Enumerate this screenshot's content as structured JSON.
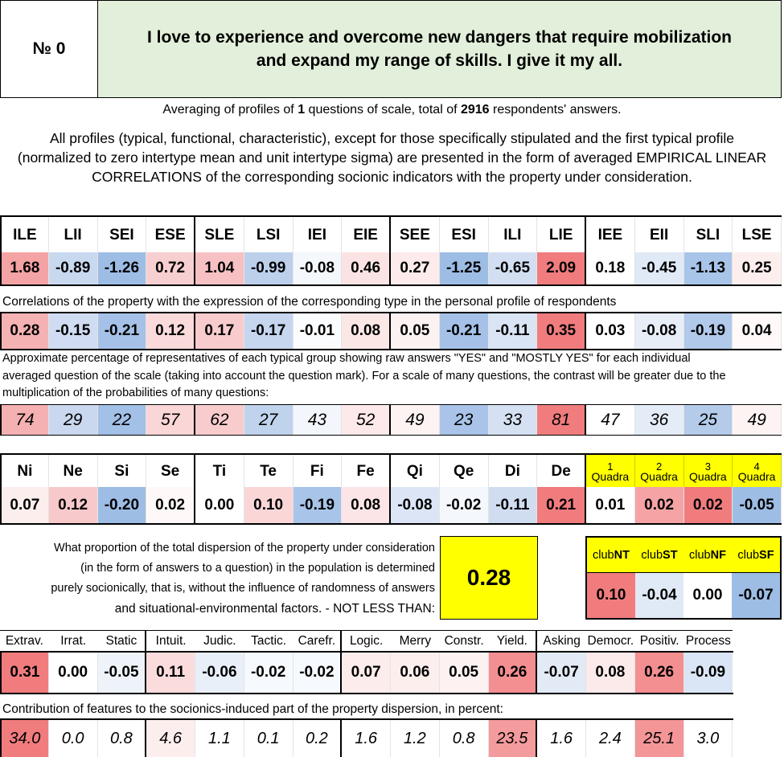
{
  "header": {
    "number_label": "№ 0",
    "title": "I love to experience and overcome new dangers that require mobilization and expand my range of skills. I give it my all."
  },
  "averaging": {
    "prefix": "Averaging of profiles of ",
    "questions": "1",
    "middle": " questions of scale, total of ",
    "respondents": "2916",
    "suffix": " respondents' answers."
  },
  "description": "All profiles (typical, functional, characteristic), except for those specifically stipulated and the first typical profile (normalized to zero intertype mean and unit intertype sigma) are presented in the form of averaged EMPIRICAL LINEAR CORRELATIONS of the corresponding socionic indicators with the property under consideration.",
  "types": {
    "names": [
      "ILE",
      "LII",
      "SEI",
      "ESE",
      "SLE",
      "LSI",
      "IEI",
      "EIE",
      "SEE",
      "ESI",
      "ILI",
      "LIE",
      "IEE",
      "EII",
      "SLI",
      "LSE"
    ],
    "normalized": [
      "1.68",
      "-0.89",
      "-1.26",
      "0.72",
      "1.04",
      "-0.99",
      "-0.08",
      "0.46",
      "0.27",
      "-1.25",
      "-0.65",
      "2.09",
      "0.18",
      "-0.45",
      "-1.13",
      "0.25"
    ],
    "normalized_colors": [
      "#f4a3a5",
      "#c8d8ef",
      "#9dbde5",
      "#f8cfd0",
      "#f7c1c3",
      "#bcd0ec",
      "#f4f7fc",
      "#fbe3e4",
      "#fdeaea",
      "#9dbde5",
      "#d2def1",
      "#f07c7e",
      "#ffffff",
      "#e0e9f6",
      "#a8c4e8",
      "#fdeeee"
    ],
    "correlations_note": "Correlations of the property with the expression of the corresponding type in the personal profile of respondents",
    "correlations": [
      "0.28",
      "-0.15",
      "-0.21",
      "0.12",
      "0.17",
      "-0.17",
      "-0.01",
      "0.08",
      "0.05",
      "-0.21",
      "-0.11",
      "0.35",
      "0.03",
      "-0.08",
      "-0.19",
      "0.04"
    ],
    "correlation_colors": [
      "#f5b2b3",
      "#cfdcf1",
      "#a5c1e7",
      "#fbdadb",
      "#f8cccd",
      "#c6d6ef",
      "#fbfcfe",
      "#fce7e7",
      "#fdf2f2",
      "#a5c1e7",
      "#d9e4f4",
      "#f07c7e",
      "#ffffff",
      "#e7eef8",
      "#b1c9ea",
      "#fff9f9"
    ],
    "percent_note": "Approximate percentage of representatives of each typical group showing raw answers \"YES\" and \"MOSTLY YES\" for each individual averaged question of the scale (taking into account the question mark). For a scale of many questions, the contrast will be greater due to the multiplication of the probabilities of many questions:",
    "percentages": [
      "74",
      "29",
      "22",
      "57",
      "62",
      "27",
      "43",
      "52",
      "49",
      "23",
      "33",
      "81",
      "47",
      "36",
      "25",
      "49"
    ],
    "percentage_colors": [
      "#f5b0b2",
      "#c9d8ef",
      "#a3c0e6",
      "#fad6d7",
      "#f8cccd",
      "#c0d3ed",
      "#f3f6fc",
      "#fde9e9",
      "#fdf3f3",
      "#a9c4e8",
      "#d5e1f3",
      "#f07c7e",
      "#ffffff",
      "#e4ecf7",
      "#b4cbea",
      "#fdf3f3"
    ]
  },
  "functions": {
    "names": [
      "Ni",
      "Ne",
      "Si",
      "Se",
      "Ti",
      "Te",
      "Fi",
      "Fe",
      "Qi",
      "Qe",
      "Di",
      "De"
    ],
    "quadra_labels": [
      {
        "n": "1",
        "word": "Quadra"
      },
      {
        "n": "2",
        "word": "Quadra"
      },
      {
        "n": "3",
        "word": "Quadra"
      },
      {
        "n": "4",
        "word": "Quadra"
      }
    ],
    "values": [
      "0.07",
      "0.12",
      "-0.20",
      "0.02",
      "0.00",
      "0.10",
      "-0.19",
      "0.08",
      "-0.08",
      "-0.02",
      "-0.11",
      "0.21",
      "0.01",
      "0.02",
      "0.02",
      "-0.05"
    ],
    "colors": [
      "#fdeeee",
      "#f8c9ca",
      "#9dbde5",
      "#fff8f8",
      "#ffffff",
      "#fad6d7",
      "#a8c4e8",
      "#fbe5e6",
      "#dbe5f5",
      "#f4f7fc",
      "#d0ddf1",
      "#f07c7e",
      "#ffffff",
      "#f5a3a5",
      "#f07c7e",
      "#9dbde5"
    ]
  },
  "dispersion": {
    "line1": "What proportion of the total dispersion of the property under consideration",
    "line2": "(in the form of answers to a question) in the population is determined",
    "line3": "purely socionically, that is, without the influence of randomness of answers",
    "line4": "and situational-environmental factors. - NOT LESS THAN:",
    "value": "0.28"
  },
  "clubs": {
    "labels": [
      {
        "pre": "club",
        "bold": "NT"
      },
      {
        "pre": "club",
        "bold": "ST"
      },
      {
        "pre": "club",
        "bold": "NF"
      },
      {
        "pre": "club",
        "bold": "SF"
      }
    ],
    "values": [
      "0.10",
      "-0.04",
      "0.00",
      "-0.07"
    ],
    "colors": [
      "#f07c7e",
      "#e0e9f6",
      "#ffffff",
      "#9dbde5"
    ]
  },
  "features": {
    "names": [
      "Extrav.",
      "Irrat.",
      "Static",
      "Intuit.",
      "Judic.",
      "Tactic.",
      "Carefr.",
      "Logic.",
      "Merry",
      "Constr.",
      "Yield.",
      "Asking",
      "Democr.",
      "Positiv.",
      "Process"
    ],
    "values": [
      "0.31",
      "0.00",
      "-0.05",
      "0.11",
      "-0.06",
      "-0.02",
      "-0.02",
      "0.07",
      "0.06",
      "0.05",
      "0.26",
      "-0.07",
      "0.08",
      "0.26",
      "-0.09"
    ],
    "value_colors": [
      "#f07c7e",
      "#ffffff",
      "#eef3fa",
      "#fbdcdd",
      "#e8eff8",
      "#f6f9fd",
      "#f6f9fd",
      "#fdecec",
      "#fdeeee",
      "#fef1f1",
      "#f48f91",
      "#e2eaf6",
      "#fceaea",
      "#f48f91",
      "#dae5f5"
    ],
    "contribution_note": "Contribution of features to the socionics-induced part of the property dispersion, in percent:",
    "percentages": [
      "34.0",
      "0.0",
      "0.8",
      "4.6",
      "1.1",
      "0.1",
      "0.2",
      "1.6",
      "1.2",
      "0.8",
      "23.5",
      "1.6",
      "2.4",
      "25.1",
      "3.0"
    ],
    "percentage_colors": [
      "#f07c7e",
      "#ffffff",
      "#ffffff",
      "#fdeeee",
      "#ffffff",
      "#ffffff",
      "#ffffff",
      "#ffffff",
      "#ffffff",
      "#ffffff",
      "#f49b9d",
      "#ffffff",
      "#ffffff",
      "#f49597",
      "#ffffff"
    ]
  }
}
